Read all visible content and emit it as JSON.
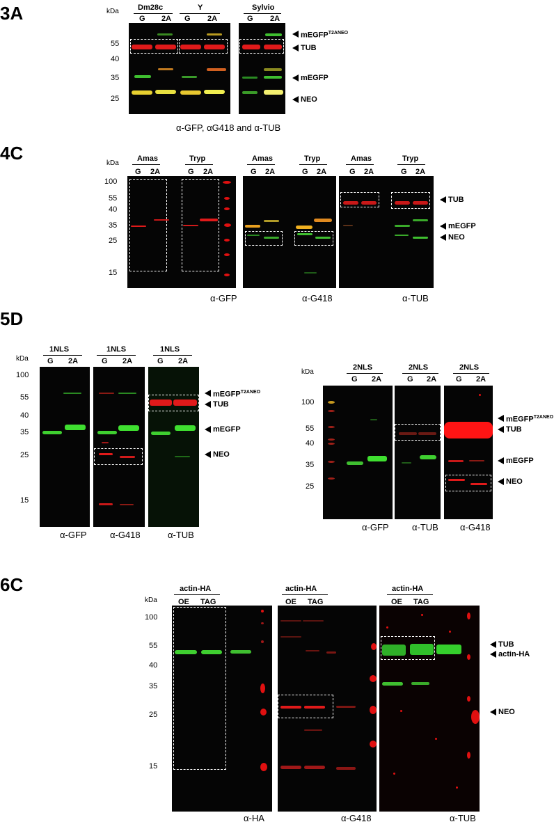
{
  "panels": {
    "p3a": {
      "label": "3A",
      "kda": "kDa",
      "groups": [
        "Dm28c",
        "Y",
        "Sylvio"
      ],
      "lanes": [
        "G",
        "2A",
        "G",
        "2A",
        "G",
        "2A"
      ],
      "mw": [
        "55",
        "40",
        "35",
        "25"
      ],
      "bands": [
        "mEGFP",
        "T2ANEO",
        "TUB",
        "mEGFP",
        "NEO"
      ],
      "caption": "α-GFP, αG418 and α-TUB"
    },
    "p4c": {
      "label": "4C",
      "kda": "kDa",
      "groups": [
        "Amas",
        "Tryp",
        "Amas",
        "Tryp",
        "Amas",
        "Tryp"
      ],
      "lanes": [
        "G",
        "2A",
        "G",
        "2A",
        "G",
        "2A",
        "G",
        "2A",
        "G",
        "2A",
        "G",
        "2A"
      ],
      "mw": [
        "100",
        "55",
        "40",
        "35",
        "25",
        "15"
      ],
      "bands": [
        "TUB",
        "mEGFP",
        "NEO"
      ],
      "antibodies": [
        "α-GFP",
        "α-G418",
        "α-TUB"
      ]
    },
    "p5d": {
      "label": "5D",
      "kda": "kDa",
      "groups": [
        "1NLS",
        "1NLS",
        "1NLS"
      ],
      "lanes": [
        "G",
        "2A",
        "G",
        "2A",
        "G",
        "2A"
      ],
      "mw": [
        "100",
        "55",
        "40",
        "35",
        "25",
        "15"
      ],
      "bands": [
        "mEGFP",
        "T2ANEO",
        "TUB",
        "mEGFP",
        "NEO"
      ],
      "antibodies": [
        "α-GFP",
        "α-G418",
        "α-TUB"
      ]
    },
    "p5d2": {
      "kda": "kDa",
      "groups": [
        "2NLS",
        "2NLS",
        "2NLS"
      ],
      "lanes": [
        "G",
        "2A",
        "G",
        "2A",
        "G",
        "2A"
      ],
      "mw": [
        "100",
        "55",
        "40",
        "35",
        "25"
      ],
      "bands": [
        "mEGFP",
        "T2ANEO",
        "TUB",
        "mEGFP",
        "NEO"
      ],
      "antibodies": [
        "α-GFP",
        "α-TUB",
        "α-G418"
      ]
    },
    "p6c": {
      "label": "6C",
      "kda": "kDa",
      "groups": [
        "actin-HA",
        "actin-HA",
        "actin-HA"
      ],
      "lanes": [
        "OE",
        "TAG",
        "OE",
        "TAG",
        "OE",
        "TAG"
      ],
      "mw": [
        "100",
        "55",
        "40",
        "35",
        "25",
        "15"
      ],
      "bands": [
        "TUB",
        "actin-HA",
        "NEO"
      ],
      "antibodies": [
        "α-HA",
        "α-G418",
        "α-TUB"
      ]
    }
  },
  "colors": {
    "red": "#e0141a",
    "green": "#2fcf2a",
    "yellow": "#f2ef3a",
    "blot": "#050505"
  }
}
